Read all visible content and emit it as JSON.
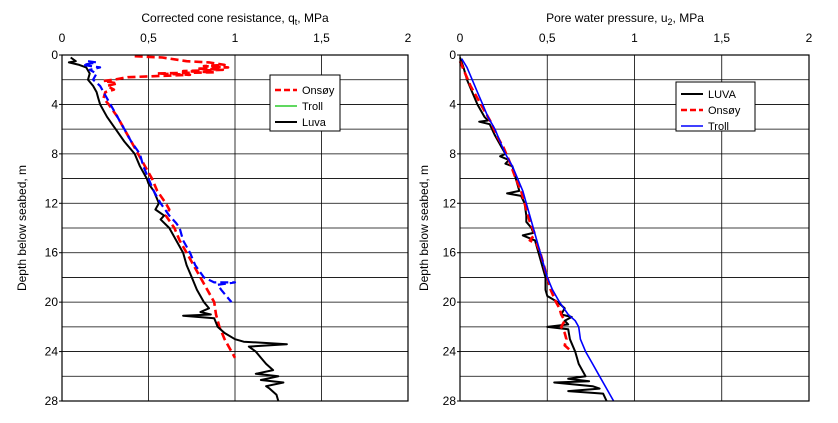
{
  "chart_data": [
    {
      "type": "line",
      "title_main": "Corrected cone resistance, q",
      "title_sub": "t",
      "title_unit": ", MPa",
      "ylabel": "Depth below seabed, m",
      "xlim": [
        0,
        2
      ],
      "ylim": [
        0,
        28
      ],
      "x_ticks": [
        0,
        0.5,
        1,
        1.5,
        2
      ],
      "x_tick_labels": [
        "0",
        "0,5",
        "1",
        "1,5",
        "2"
      ],
      "y_ticks": [
        0,
        4,
        8,
        12,
        16,
        20,
        24,
        28
      ],
      "y_tick_labels": [
        "0",
        "4",
        "8",
        "12",
        "16",
        "20",
        "24",
        "28"
      ],
      "legend_position": "top-right",
      "series": [
        {
          "name": "Onsøy",
          "color": "#ff0000",
          "dash": "8,4",
          "width": 2.6,
          "points": [
            [
              0.42,
              0.1
            ],
            [
              0.58,
              0.2
            ],
            [
              0.72,
              0.5
            ],
            [
              0.85,
              0.6
            ],
            [
              0.94,
              0.8
            ],
            [
              0.82,
              0.9
            ],
            [
              0.96,
              1
            ],
            [
              0.78,
              1.1
            ],
            [
              0.93,
              1.2
            ],
            [
              0.7,
              1.3
            ],
            [
              0.88,
              1.4
            ],
            [
              0.55,
              1.5
            ],
            [
              0.74,
              1.6
            ],
            [
              0.38,
              1.8
            ],
            [
              0.3,
              2
            ],
            [
              0.24,
              2.1
            ],
            [
              0.32,
              2.3
            ],
            [
              0.26,
              2.5
            ],
            [
              0.3,
              2.8
            ],
            [
              0.25,
              3
            ],
            [
              0.24,
              3.5
            ],
            [
              0.27,
              4
            ],
            [
              0.32,
              5
            ],
            [
              0.36,
              6
            ],
            [
              0.4,
              7
            ],
            [
              0.44,
              8
            ],
            [
              0.48,
              9
            ],
            [
              0.52,
              10
            ],
            [
              0.55,
              11
            ],
            [
              0.6,
              12
            ],
            [
              0.62,
              12.5
            ],
            [
              0.6,
              13
            ],
            [
              0.65,
              14
            ],
            [
              0.68,
              15
            ],
            [
              0.72,
              16
            ],
            [
              0.76,
              17
            ],
            [
              0.8,
              18
            ],
            [
              0.84,
              19
            ],
            [
              0.88,
              20
            ],
            [
              0.89,
              21
            ],
            [
              0.91,
              22
            ],
            [
              0.94,
              23
            ],
            [
              0.98,
              24
            ],
            [
              1.0,
              24.5
            ]
          ]
        },
        {
          "name": "Troll",
          "color": "#00c000",
          "dash": "",
          "width": 1.2,
          "points": []
        },
        {
          "name": "Luva",
          "color": "#000000",
          "dash": "",
          "width": 2,
          "points": [
            [
              0.05,
              0.2
            ],
            [
              0.08,
              0.5
            ],
            [
              0.04,
              0.6
            ],
            [
              0.1,
              0.8
            ],
            [
              0.14,
              1
            ],
            [
              0.16,
              1.5
            ],
            [
              0.15,
              2
            ],
            [
              0.18,
              2.5
            ],
            [
              0.2,
              3
            ],
            [
              0.21,
              3.5
            ],
            [
              0.22,
              4
            ],
            [
              0.26,
              5
            ],
            [
              0.31,
              6
            ],
            [
              0.36,
              7
            ],
            [
              0.42,
              8
            ],
            [
              0.45,
              9
            ],
            [
              0.49,
              10
            ],
            [
              0.5,
              10.4
            ],
            [
              0.53,
              11
            ],
            [
              0.56,
              12
            ],
            [
              0.54,
              12.5
            ],
            [
              0.59,
              13
            ],
            [
              0.57,
              13.3
            ],
            [
              0.62,
              14
            ],
            [
              0.66,
              15
            ],
            [
              0.7,
              16
            ],
            [
              0.72,
              17
            ],
            [
              0.75,
              18
            ],
            [
              0.78,
              19
            ],
            [
              0.82,
              20
            ],
            [
              0.85,
              20.5
            ],
            [
              0.8,
              20.8
            ],
            [
              0.86,
              21
            ],
            [
              0.7,
              21.1
            ],
            [
              0.88,
              21.3
            ],
            [
              0.9,
              22
            ],
            [
              0.94,
              22.5
            ],
            [
              1.0,
              23
            ],
            [
              1.05,
              23.2
            ],
            [
              1.3,
              23.4
            ],
            [
              1.08,
              23.6
            ],
            [
              1.12,
              24
            ],
            [
              1.15,
              24.5
            ],
            [
              1.18,
              25
            ],
            [
              1.22,
              25.5
            ],
            [
              1.12,
              25.8
            ],
            [
              1.25,
              26
            ],
            [
              1.15,
              26.3
            ],
            [
              1.28,
              26.5
            ],
            [
              1.18,
              26.8
            ],
            [
              1.2,
              27
            ],
            [
              1.24,
              27.5
            ],
            [
              1.25,
              28
            ]
          ]
        },
        {
          "name": "",
          "color": "#0000ff",
          "dash": "8,4",
          "width": 2.2,
          "points": [
            [
              0.15,
              0.5
            ],
            [
              0.2,
              0.6
            ],
            [
              0.12,
              0.8
            ],
            [
              0.22,
              1
            ],
            [
              0.16,
              1.2
            ],
            [
              0.2,
              1.5
            ],
            [
              0.18,
              2
            ],
            [
              0.22,
              2.5
            ],
            [
              0.24,
              3
            ],
            [
              0.26,
              3.5
            ],
            [
              0.28,
              4
            ],
            [
              0.32,
              5
            ],
            [
              0.36,
              6
            ],
            [
              0.4,
              7
            ],
            [
              0.45,
              8
            ],
            [
              0.47,
              9
            ],
            [
              0.5,
              10
            ],
            [
              0.53,
              11
            ],
            [
              0.57,
              12
            ],
            [
              0.62,
              13
            ],
            [
              0.66,
              13.6
            ],
            [
              0.68,
              14
            ],
            [
              0.7,
              15
            ],
            [
              0.74,
              16
            ],
            [
              0.77,
              17
            ],
            [
              0.82,
              18
            ],
            [
              0.88,
              18.4
            ],
            [
              1.0,
              18.4
            ],
            [
              0.9,
              18.6
            ],
            [
              0.92,
              19
            ],
            [
              0.95,
              19.5
            ],
            [
              0.98,
              20
            ]
          ]
        }
      ]
    },
    {
      "type": "line",
      "title_main": "Pore water pressure, u",
      "title_sub": "2",
      "title_unit": ", MPa",
      "ylabel": "Depth below seabed, m",
      "xlim": [
        0,
        2
      ],
      "ylim": [
        0,
        28
      ],
      "x_ticks": [
        0,
        0.5,
        1,
        1.5,
        2
      ],
      "x_tick_labels": [
        "0",
        "0,5",
        "1",
        "1,5",
        "2"
      ],
      "y_ticks": [
        0,
        4,
        8,
        12,
        16,
        20,
        24,
        28
      ],
      "y_tick_labels": [
        "0",
        "4",
        "8",
        "12",
        "16",
        "20",
        "24",
        "28"
      ],
      "legend_position": "top-right",
      "series": [
        {
          "name": "LUVA",
          "color": "#000000",
          "dash": "",
          "width": 2,
          "points": [
            [
              0.0,
              0.2
            ],
            [
              0.02,
              1
            ],
            [
              0.04,
              2
            ],
            [
              0.07,
              3
            ],
            [
              0.1,
              4
            ],
            [
              0.14,
              5
            ],
            [
              0.16,
              5.3
            ],
            [
              0.11,
              5.4
            ],
            [
              0.17,
              5.6
            ],
            [
              0.2,
              6.5
            ],
            [
              0.24,
              7.5
            ],
            [
              0.26,
              8
            ],
            [
              0.23,
              8.2
            ],
            [
              0.28,
              8.5
            ],
            [
              0.26,
              8.8
            ],
            [
              0.3,
              9
            ],
            [
              0.32,
              10
            ],
            [
              0.34,
              11
            ],
            [
              0.27,
              11.2
            ],
            [
              0.35,
              11.4
            ],
            [
              0.37,
              12
            ],
            [
              0.38,
              13
            ],
            [
              0.38,
              13.5
            ],
            [
              0.41,
              14
            ],
            [
              0.42,
              14.4
            ],
            [
              0.36,
              14.6
            ],
            [
              0.43,
              15
            ],
            [
              0.45,
              16
            ],
            [
              0.47,
              17
            ],
            [
              0.49,
              18
            ],
            [
              0.49,
              19
            ],
            [
              0.5,
              19.5
            ],
            [
              0.56,
              20
            ],
            [
              0.6,
              20.5
            ],
            [
              0.58,
              21
            ],
            [
              0.64,
              21.2
            ],
            [
              0.6,
              21.5
            ],
            [
              0.62,
              21.8
            ],
            [
              0.5,
              22
            ],
            [
              0.62,
              22.2
            ],
            [
              0.63,
              23
            ],
            [
              0.66,
              24
            ],
            [
              0.68,
              25
            ],
            [
              0.72,
              26
            ],
            [
              0.62,
              26.2
            ],
            [
              0.74,
              26.4
            ],
            [
              0.54,
              26.5
            ],
            [
              0.76,
              26.8
            ],
            [
              0.8,
              27
            ],
            [
              0.62,
              27.2
            ],
            [
              0.82,
              27.4
            ],
            [
              0.84,
              28
            ]
          ]
        },
        {
          "name": "Onsøy",
          "color": "#ff0000",
          "dash": "8,4",
          "width": 2.6,
          "points": [
            [
              0.0,
              0.5
            ],
            [
              0.03,
              1.5
            ],
            [
              0.06,
              2.5
            ],
            [
              0.1,
              3.5
            ],
            [
              0.14,
              4.5
            ],
            [
              0.18,
              5.5
            ],
            [
              0.21,
              6.5
            ],
            [
              0.25,
              7.5
            ],
            [
              0.28,
              8.5
            ],
            [
              0.32,
              10
            ],
            [
              0.35,
              11
            ],
            [
              0.37,
              12
            ],
            [
              0.39,
              13
            ],
            [
              0.4,
              13.5
            ],
            [
              0.43,
              14.5
            ],
            [
              0.4,
              15
            ],
            [
              0.44,
              15.3
            ],
            [
              0.46,
              16
            ],
            [
              0.48,
              17
            ],
            [
              0.5,
              18
            ],
            [
              0.52,
              19
            ],
            [
              0.55,
              20
            ],
            [
              0.57,
              20.5
            ],
            [
              0.58,
              21
            ],
            [
              0.6,
              21.5
            ],
            [
              0.58,
              22
            ],
            [
              0.6,
              22.5
            ],
            [
              0.61,
              23
            ],
            [
              0.6,
              23.5
            ],
            [
              0.64,
              24
            ]
          ]
        },
        {
          "name": "Troll",
          "color": "#0000ff",
          "dash": "",
          "width": 1.6,
          "points": [
            [
              0.01,
              0.3
            ],
            [
              0.04,
              1
            ],
            [
              0.07,
              2
            ],
            [
              0.1,
              3
            ],
            [
              0.13,
              4
            ],
            [
              0.16,
              5
            ],
            [
              0.2,
              6
            ],
            [
              0.23,
              7
            ],
            [
              0.26,
              8
            ],
            [
              0.3,
              9
            ],
            [
              0.33,
              10
            ],
            [
              0.36,
              11
            ],
            [
              0.38,
              12
            ],
            [
              0.4,
              13
            ],
            [
              0.42,
              14
            ],
            [
              0.44,
              15
            ],
            [
              0.46,
              16
            ],
            [
              0.48,
              17
            ],
            [
              0.5,
              18
            ],
            [
              0.53,
              19
            ],
            [
              0.57,
              20
            ],
            [
              0.62,
              21
            ],
            [
              0.66,
              21.5
            ],
            [
              0.68,
              22
            ],
            [
              0.69,
              23
            ],
            [
              0.72,
              24
            ],
            [
              0.76,
              25
            ],
            [
              0.8,
              26
            ],
            [
              0.84,
              27
            ],
            [
              0.88,
              28
            ]
          ]
        }
      ]
    }
  ]
}
